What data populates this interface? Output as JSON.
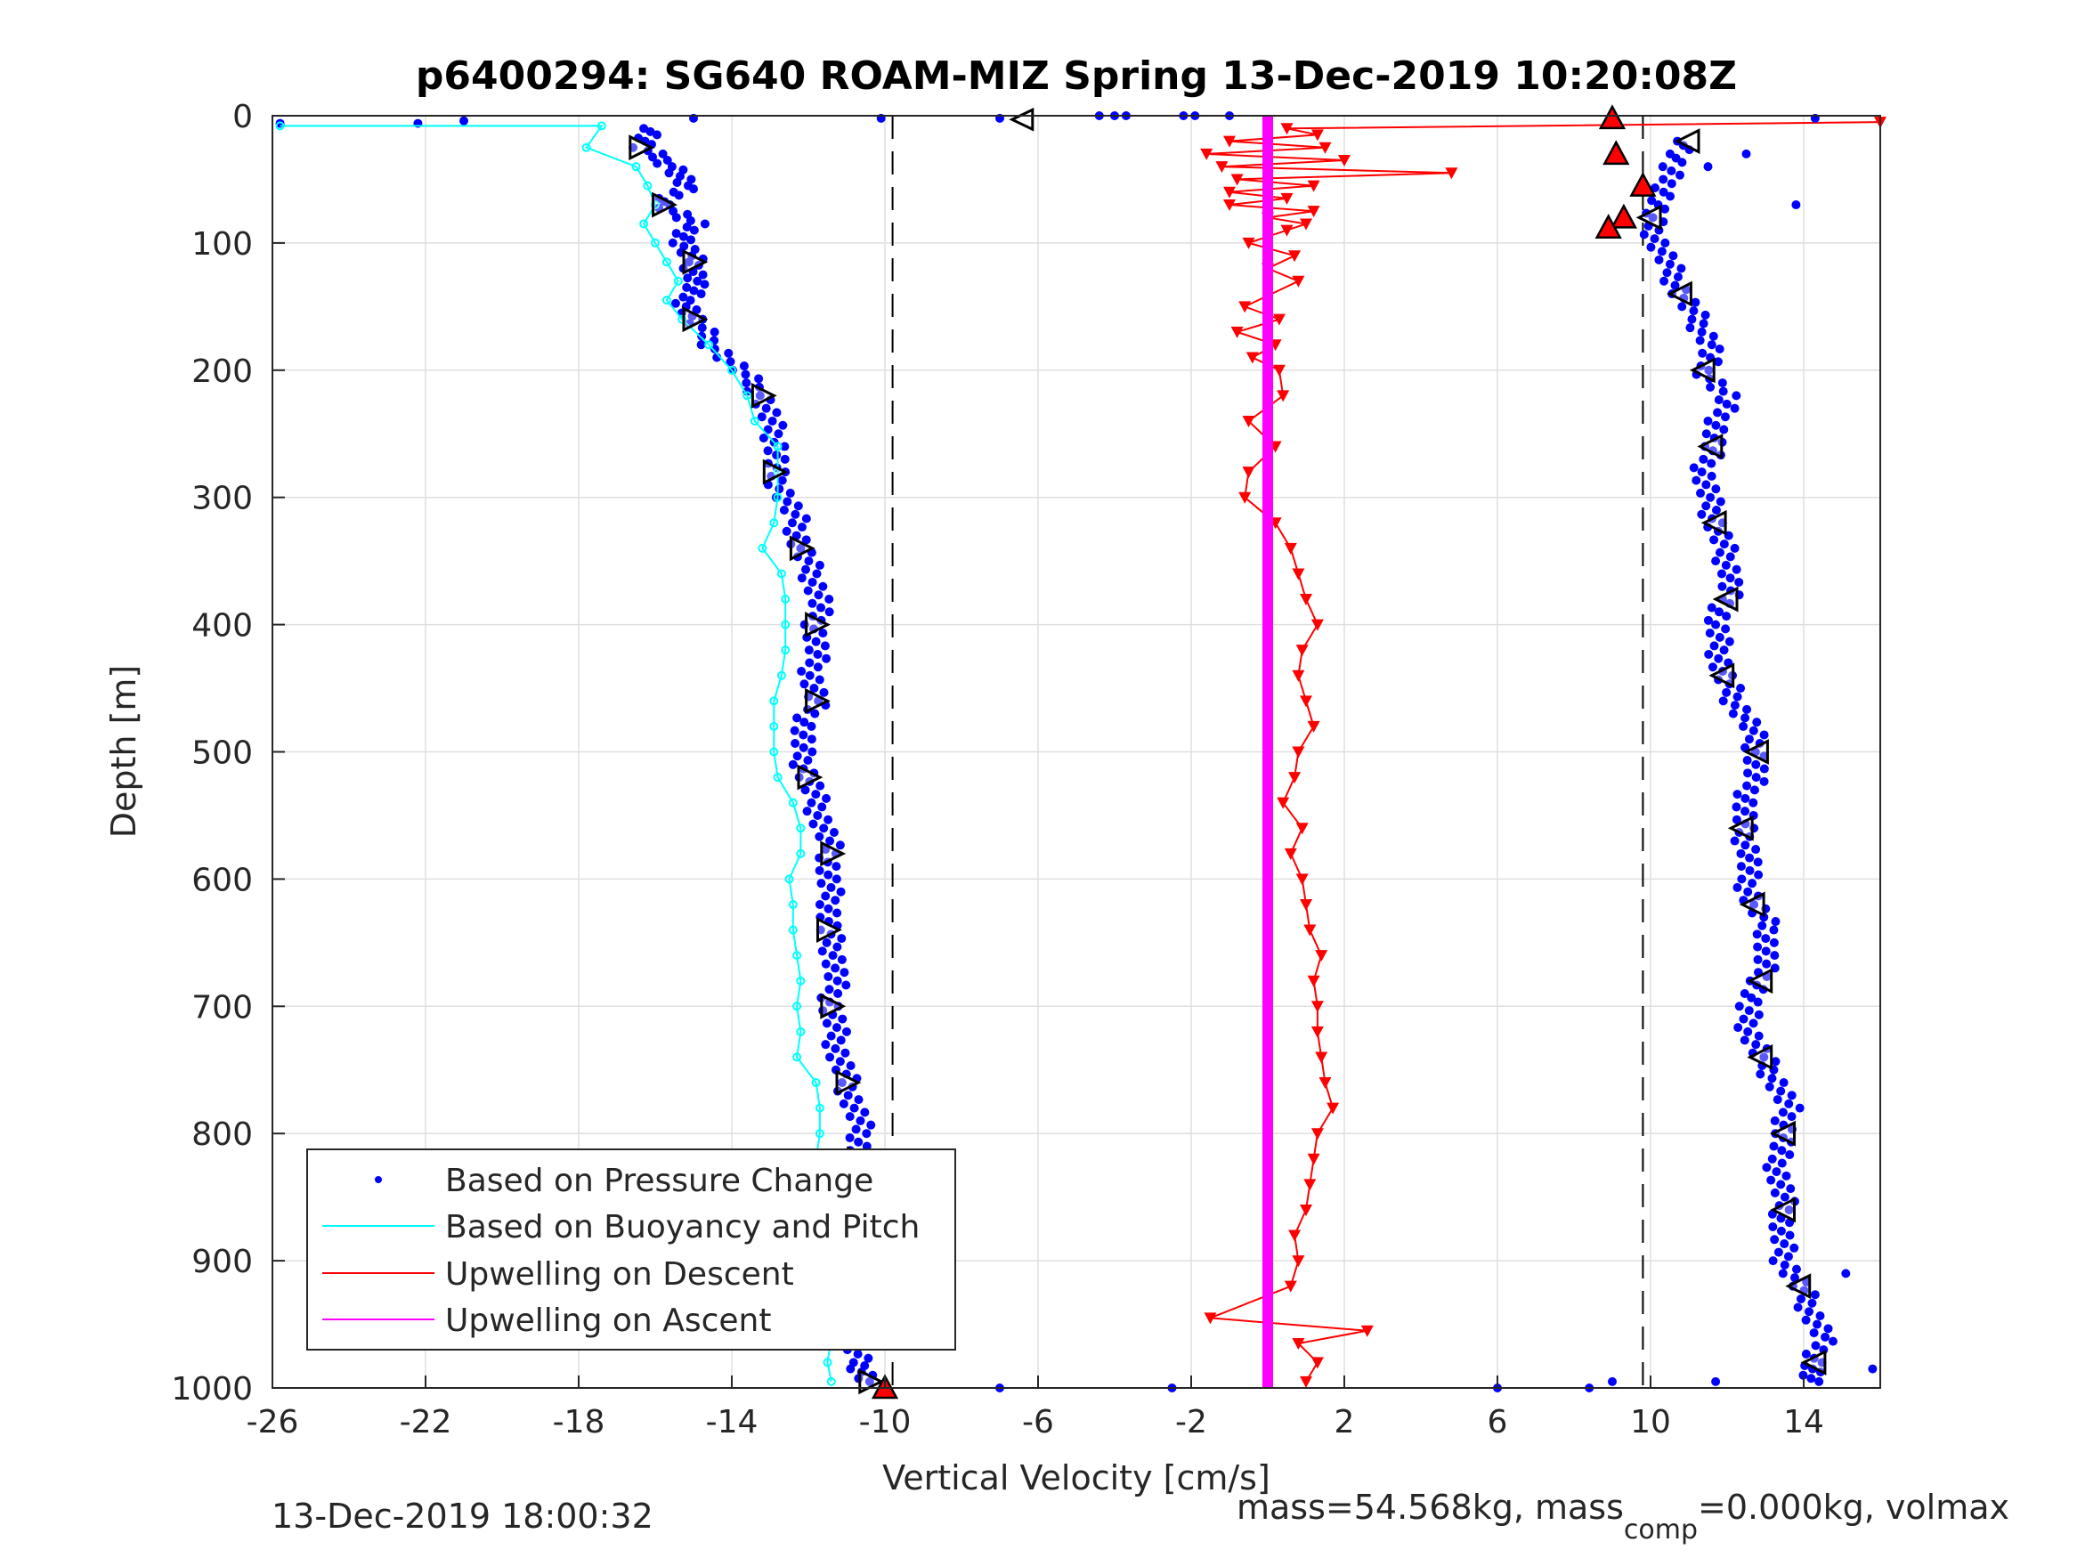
{
  "chart_data": {
    "type": "scatter",
    "title": "p6400294: SG640 ROAM-MIZ Spring 13-Dec-2019 10:20:08Z",
    "xlabel": "Vertical Velocity [cm/s]",
    "ylabel": "Depth [m]",
    "xlim": [
      -26,
      16
    ],
    "ylim": [
      0,
      1000
    ],
    "y_reversed": true,
    "grid": true,
    "legend_position": "bottom-left",
    "xticks": [
      "-26",
      "-22",
      "-18",
      "-14",
      "-10",
      "-6",
      "-2",
      "2",
      "6",
      "10",
      "14"
    ],
    "yticks": [
      "0",
      "100",
      "200",
      "300",
      "400",
      "500",
      "600",
      "700",
      "800",
      "900",
      "1000"
    ],
    "reference_lines": [
      -9.8,
      9.8
    ],
    "series": [
      {
        "name": "Based on Pressure Change",
        "color": "#0000ff",
        "style": "dots",
        "descent_profile": [
          [
            -16,
            10
          ],
          [
            -16.4,
            25
          ],
          [
            -15.5,
            40
          ],
          [
            -15.2,
            55
          ],
          [
            -15.8,
            70
          ],
          [
            -15.0,
            85
          ],
          [
            -15.3,
            100
          ],
          [
            -15.0,
            115
          ],
          [
            -14.9,
            130
          ],
          [
            -15.2,
            145
          ],
          [
            -15.0,
            160
          ],
          [
            -14.5,
            180
          ],
          [
            -13.8,
            200
          ],
          [
            -13.2,
            220
          ],
          [
            -13.0,
            240
          ],
          [
            -12.8,
            260
          ],
          [
            -12.9,
            280
          ],
          [
            -12.6,
            300
          ],
          [
            -12.3,
            320
          ],
          [
            -12.2,
            340
          ],
          [
            -11.9,
            360
          ],
          [
            -11.7,
            380
          ],
          [
            -11.8,
            400
          ],
          [
            -11.8,
            420
          ],
          [
            -11.9,
            440
          ],
          [
            -11.8,
            460
          ],
          [
            -12.1,
            480
          ],
          [
            -12.2,
            500
          ],
          [
            -12.0,
            520
          ],
          [
            -11.8,
            540
          ],
          [
            -11.6,
            560
          ],
          [
            -11.4,
            580
          ],
          [
            -11.5,
            600
          ],
          [
            -11.4,
            620
          ],
          [
            -11.5,
            640
          ],
          [
            -11.3,
            660
          ],
          [
            -11.3,
            680
          ],
          [
            -11.4,
            700
          ],
          [
            -11.3,
            720
          ],
          [
            -11.2,
            740
          ],
          [
            -11.0,
            760
          ],
          [
            -10.8,
            780
          ],
          [
            -10.6,
            800
          ],
          [
            -10.7,
            820
          ],
          [
            -10.9,
            840
          ],
          [
            -11.2,
            860
          ],
          [
            -11.3,
            880
          ],
          [
            -11.4,
            900
          ],
          [
            -11.5,
            920
          ],
          [
            -11.4,
            940
          ],
          [
            -10.9,
            960
          ],
          [
            -10.7,
            980
          ],
          [
            -10.4,
            995
          ]
        ],
        "ascent_profile": [
          [
            11.0,
            20
          ],
          [
            10.5,
            40
          ],
          [
            10.4,
            60
          ],
          [
            10.0,
            80
          ],
          [
            10.2,
            100
          ],
          [
            10.5,
            120
          ],
          [
            10.8,
            140
          ],
          [
            11.2,
            160
          ],
          [
            11.6,
            180
          ],
          [
            11.4,
            200
          ],
          [
            12.0,
            220
          ],
          [
            11.8,
            240
          ],
          [
            11.6,
            260
          ],
          [
            11.4,
            280
          ],
          [
            11.5,
            300
          ],
          [
            11.7,
            320
          ],
          [
            11.9,
            340
          ],
          [
            12.1,
            360
          ],
          [
            12.0,
            380
          ],
          [
            11.7,
            400
          ],
          [
            11.8,
            420
          ],
          [
            11.9,
            440
          ],
          [
            12.2,
            460
          ],
          [
            12.6,
            480
          ],
          [
            12.8,
            500
          ],
          [
            12.7,
            520
          ],
          [
            12.5,
            540
          ],
          [
            12.4,
            560
          ],
          [
            12.6,
            580
          ],
          [
            12.5,
            600
          ],
          [
            12.7,
            620
          ],
          [
            13.1,
            640
          ],
          [
            13.0,
            660
          ],
          [
            12.9,
            680
          ],
          [
            12.5,
            700
          ],
          [
            12.6,
            720
          ],
          [
            12.9,
            740
          ],
          [
            13.3,
            760
          ],
          [
            13.6,
            780
          ],
          [
            13.5,
            800
          ],
          [
            13.3,
            820
          ],
          [
            13.4,
            840
          ],
          [
            13.5,
            860
          ],
          [
            13.4,
            880
          ],
          [
            13.5,
            900
          ],
          [
            13.9,
            920
          ],
          [
            14.2,
            940
          ],
          [
            14.5,
            960
          ],
          [
            14.3,
            980
          ],
          [
            14.1,
            995
          ]
        ],
        "scattered_points": [
          [
            -25.8,
            6
          ],
          [
            -22.2,
            6
          ],
          [
            -21.0,
            4
          ],
          [
            -15.0,
            2
          ],
          [
            -10.1,
            2
          ],
          [
            -7.0,
            2
          ],
          [
            -4.4,
            0
          ],
          [
            -4.0,
            0
          ],
          [
            -3.7,
            0
          ],
          [
            -2.2,
            0
          ],
          [
            -1.9,
            0
          ],
          [
            -1.0,
            0
          ],
          [
            -8.8,
            955
          ],
          [
            -9.1,
            955
          ],
          [
            -7.0,
            1000
          ],
          [
            -2.5,
            1000
          ],
          [
            6.0,
            1000
          ],
          [
            8.4,
            1000
          ],
          [
            9.0,
            995
          ],
          [
            11.7,
            995
          ],
          [
            15.8,
            985
          ],
          [
            15.1,
            910
          ],
          [
            11.5,
            40
          ],
          [
            12.5,
            30
          ],
          [
            13.8,
            70
          ],
          [
            9.0,
            90
          ],
          [
            14.3,
            2
          ]
        ]
      },
      {
        "name": "Based on Buoyancy and Pitch",
        "color": "#00ffff",
        "style": "line",
        "values": [
          [
            -25.8,
            8
          ],
          [
            -17.4,
            8
          ],
          [
            -17.8,
            25
          ],
          [
            -16.5,
            40
          ],
          [
            -16.2,
            55
          ],
          [
            -16.0,
            70
          ],
          [
            -16.3,
            85
          ],
          [
            -16.0,
            100
          ],
          [
            -15.7,
            115
          ],
          [
            -15.4,
            130
          ],
          [
            -15.7,
            145
          ],
          [
            -15.3,
            160
          ],
          [
            -14.6,
            180
          ],
          [
            -14.0,
            200
          ],
          [
            -13.6,
            220
          ],
          [
            -13.4,
            240
          ],
          [
            -12.8,
            260
          ],
          [
            -12.8,
            280
          ],
          [
            -12.8,
            300
          ],
          [
            -12.9,
            320
          ],
          [
            -13.2,
            340
          ],
          [
            -12.7,
            360
          ],
          [
            -12.6,
            380
          ],
          [
            -12.6,
            400
          ],
          [
            -12.6,
            420
          ],
          [
            -12.7,
            440
          ],
          [
            -12.9,
            460
          ],
          [
            -12.9,
            480
          ],
          [
            -12.9,
            500
          ],
          [
            -12.8,
            520
          ],
          [
            -12.4,
            540
          ],
          [
            -12.2,
            560
          ],
          [
            -12.2,
            580
          ],
          [
            -12.5,
            600
          ],
          [
            -12.4,
            620
          ],
          [
            -12.4,
            640
          ],
          [
            -12.3,
            660
          ],
          [
            -12.2,
            680
          ],
          [
            -12.3,
            700
          ],
          [
            -12.2,
            720
          ],
          [
            -12.3,
            740
          ],
          [
            -11.8,
            760
          ],
          [
            -11.7,
            780
          ],
          [
            -11.7,
            800
          ],
          [
            -11.8,
            820
          ],
          [
            -11.8,
            840
          ],
          [
            -11.8,
            860
          ],
          [
            -11.9,
            880
          ],
          [
            -11.9,
            900
          ],
          [
            -11.9,
            920
          ],
          [
            -12.0,
            940
          ],
          [
            -11.4,
            960
          ],
          [
            -11.5,
            980
          ],
          [
            -11.4,
            995
          ]
        ]
      },
      {
        "name": "Upwelling on Descent",
        "color": "#ff0000",
        "style": "line-with-triangles",
        "values": [
          [
            16.0,
            5
          ],
          [
            0.5,
            10
          ],
          [
            1.3,
            15
          ],
          [
            -1.0,
            20
          ],
          [
            1.5,
            25
          ],
          [
            -1.6,
            30
          ],
          [
            2.0,
            35
          ],
          [
            -1.2,
            40
          ],
          [
            4.8,
            45
          ],
          [
            -0.8,
            50
          ],
          [
            1.2,
            55
          ],
          [
            -1.0,
            60
          ],
          [
            0.5,
            65
          ],
          [
            -1.0,
            70
          ],
          [
            1.2,
            75
          ],
          [
            0.0,
            80
          ],
          [
            1.0,
            85
          ],
          [
            0.5,
            90
          ],
          [
            -0.5,
            100
          ],
          [
            0.7,
            110
          ],
          [
            0.0,
            120
          ],
          [
            0.8,
            130
          ],
          [
            -0.6,
            150
          ],
          [
            0.3,
            160
          ],
          [
            -0.8,
            170
          ],
          [
            0.2,
            180
          ],
          [
            -0.4,
            190
          ],
          [
            0.3,
            200
          ],
          [
            0.4,
            220
          ],
          [
            -0.5,
            240
          ],
          [
            0.2,
            260
          ],
          [
            -0.5,
            280
          ],
          [
            -0.6,
            300
          ],
          [
            0.2,
            320
          ],
          [
            0.6,
            340
          ],
          [
            0.8,
            360
          ],
          [
            1.0,
            380
          ],
          [
            1.3,
            400
          ],
          [
            0.9,
            420
          ],
          [
            0.8,
            440
          ],
          [
            1.0,
            460
          ],
          [
            1.2,
            480
          ],
          [
            0.8,
            500
          ],
          [
            0.7,
            520
          ],
          [
            0.4,
            540
          ],
          [
            0.9,
            560
          ],
          [
            0.6,
            580
          ],
          [
            0.9,
            600
          ],
          [
            1.0,
            620
          ],
          [
            1.1,
            640
          ],
          [
            1.4,
            660
          ],
          [
            1.2,
            680
          ],
          [
            1.3,
            700
          ],
          [
            1.3,
            720
          ],
          [
            1.4,
            740
          ],
          [
            1.5,
            760
          ],
          [
            1.7,
            780
          ],
          [
            1.3,
            800
          ],
          [
            1.2,
            820
          ],
          [
            1.1,
            840
          ],
          [
            1.0,
            860
          ],
          [
            0.7,
            880
          ],
          [
            0.8,
            900
          ],
          [
            0.6,
            920
          ],
          [
            -1.5,
            945
          ],
          [
            2.6,
            955
          ],
          [
            0.8,
            965
          ],
          [
            1.3,
            980
          ],
          [
            1.0,
            995
          ]
        ]
      },
      {
        "name": "Upwelling on Ascent",
        "color": "#ff00ff",
        "style": "line",
        "values": [
          [
            0.0,
            0
          ],
          [
            0.0,
            1000
          ]
        ]
      }
    ],
    "annotations": {
      "timestamp": "13-Dec-2019 18:00:32",
      "info_prefix": "mass=54.568kg, mass",
      "info_subscript": "comp",
      "info_suffix": "=0.000kg, volmax"
    }
  },
  "colors": {
    "axis": "#262626",
    "grid": "#dfdfdf",
    "triangle_fill_red": "#ff0000",
    "triangle_outline": "#000000"
  }
}
